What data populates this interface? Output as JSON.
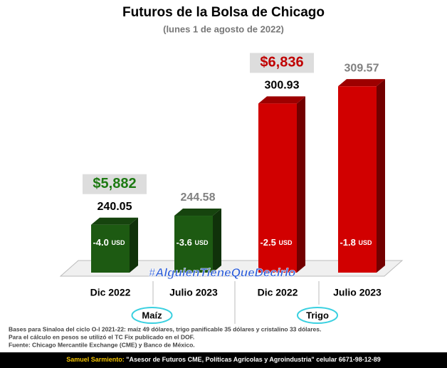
{
  "chart_data": {
    "type": "bar3d",
    "title": "Futuros de la Bolsa de Chicago",
    "subtitle": "(lunes 1 de agosto de 2022)",
    "categories": [
      "Dic 2022",
      "Julio 2023",
      "Dic 2022",
      "Julio 2023"
    ],
    "groups": [
      "Maíz",
      "Trigo"
    ],
    "group_of": [
      0,
      0,
      1,
      1
    ],
    "values": [
      240.05,
      244.58,
      300.93,
      309.57
    ],
    "colors": [
      "#1d5a12",
      "#1d5a12",
      "#d10000",
      "#d10000"
    ],
    "value_label_colors": [
      "#000000",
      "#808080",
      "#000000",
      "#808080"
    ],
    "change_labels": [
      "-4.0",
      "-3.6",
      "-2.5",
      "-1.8"
    ],
    "change_unit": "USD",
    "peso_labels": [
      "$5,882",
      null,
      "$6,836",
      null
    ],
    "peso_colors": [
      "#1d7a12",
      null,
      "#c00000",
      null
    ],
    "ylim": [
      216,
      330
    ],
    "hashtag": "#AlguienTieneQueDecirlo",
    "notes": [
      "Bases para Sinaloa del ciclo O-I 2021-22: maíz 49 dólares, trigo panificable 35 dólares y cristalino 33 dólares.",
      "Para el cálculo en pesos se utilizó el TC Fix publicado en el DOF.",
      "Fuente: Chicago Mercantile Exchange (CME) y Banco de México."
    ],
    "footer_name": "Samuel Sarmiento:",
    "footer_text": "\"Asesor de Futuros CME, Políticas Agrícolas y Agroindustria\" celular 6671-98-12-89"
  }
}
